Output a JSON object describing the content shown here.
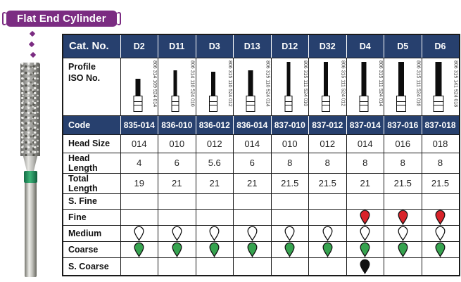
{
  "badge": {
    "label": "Flat End Cylinder"
  },
  "colors": {
    "badge_purple": "#7B2C82",
    "header_navy": "#27406E",
    "grit": {
      "white": "#FFFFFF",
      "green": "#36A34F",
      "red": "#D8232A",
      "black": "#111111"
    }
  },
  "table": {
    "cat_no_label": "Cat. No.",
    "profile_label_line1": "Profile",
    "profile_label_line2": "ISO No.",
    "columns": [
      "D2",
      "D11",
      "D3",
      "D13",
      "D12",
      "D32",
      "D4",
      "D5",
      "D6"
    ],
    "iso_numbers": [
      "806 314 109 524 014",
      "806 314 110 524 010",
      "806 315 110 524 012",
      "806 315 110 524 014",
      "806 315 111 524 010",
      "806 315 111 524 012",
      "806 315 111 524 014",
      "806 315 111 524 016",
      "806 315 141 524 018"
    ],
    "rows": {
      "code": {
        "label": "Code",
        "values": [
          "835-014",
          "836-010",
          "836-012",
          "836-014",
          "837-010",
          "837-012",
          "837-014",
          "837-016",
          "837-018"
        ]
      },
      "head_size": {
        "label": "Head Size",
        "values": [
          "014",
          "010",
          "012",
          "014",
          "010",
          "012",
          "014",
          "016",
          "018"
        ]
      },
      "head_length": {
        "label": "Head Length",
        "values": [
          "4",
          "6",
          "5.6",
          "6",
          "8",
          "8",
          "8",
          "8",
          "8"
        ]
      },
      "total_length": {
        "label": "Total Length",
        "values": [
          "19",
          "21",
          "21",
          "21",
          "21.5",
          "21.5",
          "21",
          "21.5",
          "21.5"
        ]
      },
      "s_fine": {
        "label": "S. Fine",
        "values": [
          "",
          "",
          "",
          "",
          "",
          "",
          "",
          "",
          ""
        ]
      },
      "fine": {
        "label": "Fine",
        "values": [
          "",
          "",
          "",
          "",
          "",
          "",
          "red",
          "red",
          "red"
        ]
      },
      "medium": {
        "label": "Medium",
        "values": [
          "white",
          "white",
          "white",
          "white",
          "white",
          "white",
          "white",
          "white",
          "white"
        ]
      },
      "coarse": {
        "label": "Coarse",
        "values": [
          "green",
          "green",
          "green",
          "green",
          "green",
          "green",
          "green",
          "green",
          "green"
        ]
      },
      "s_coarse": {
        "label": "S. Coarse",
        "values": [
          "",
          "",
          "",
          "",
          "",
          "",
          "black",
          "",
          ""
        ]
      }
    }
  }
}
